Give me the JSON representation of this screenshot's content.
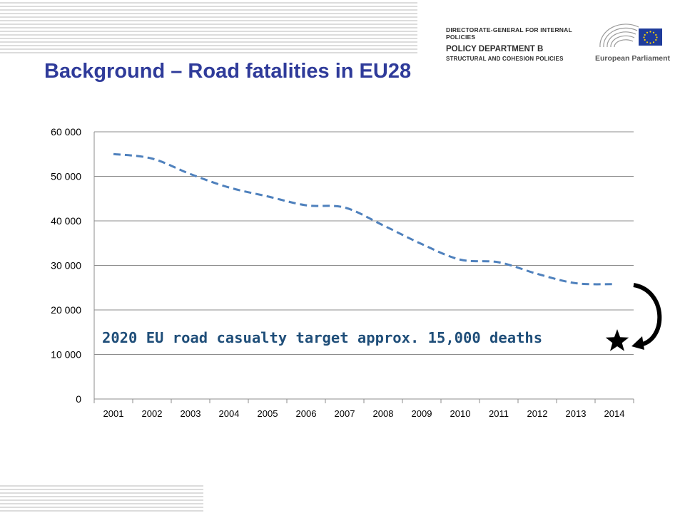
{
  "header": {
    "directorate": "DIRECTORATE-GENERAL FOR INTERNAL POLICIES",
    "department": "POLICY DEPARTMENT B",
    "subtitle": "STRUCTURAL AND COHESION POLICIES",
    "institution": "European Parliament"
  },
  "slide": {
    "title": "Background – Road fatalities in EU28"
  },
  "colors": {
    "title": "#2f3b9a",
    "series": "#4f81bd",
    "annotation": "#1f4e79"
  },
  "chart_data": {
    "type": "line",
    "title": "",
    "xlabel": "",
    "ylabel": "",
    "categories": [
      "2001",
      "2002",
      "2003",
      "2004",
      "2005",
      "2006",
      "2007",
      "2008",
      "2009",
      "2010",
      "2011",
      "2012",
      "2013",
      "2014"
    ],
    "series": [
      {
        "values": [
          55000,
          54000,
          50500,
          47500,
          45500,
          43500,
          43000,
          39000,
          34800,
          31300,
          30700,
          28100,
          26000,
          25800
        ],
        "style": "dashed"
      }
    ],
    "ylim": [
      0,
      60000
    ],
    "yticks": [
      0,
      10000,
      20000,
      30000,
      40000,
      50000,
      60000
    ],
    "ytick_labels": [
      "0",
      "10 000",
      "20 000",
      "30 000",
      "40 000",
      "50 000",
      "60 000"
    ],
    "grid": "horizontal",
    "legend": "none",
    "annotation": "2020 EU road casualty target approx. 15,000 deaths",
    "target_marker": "star-icon"
  }
}
